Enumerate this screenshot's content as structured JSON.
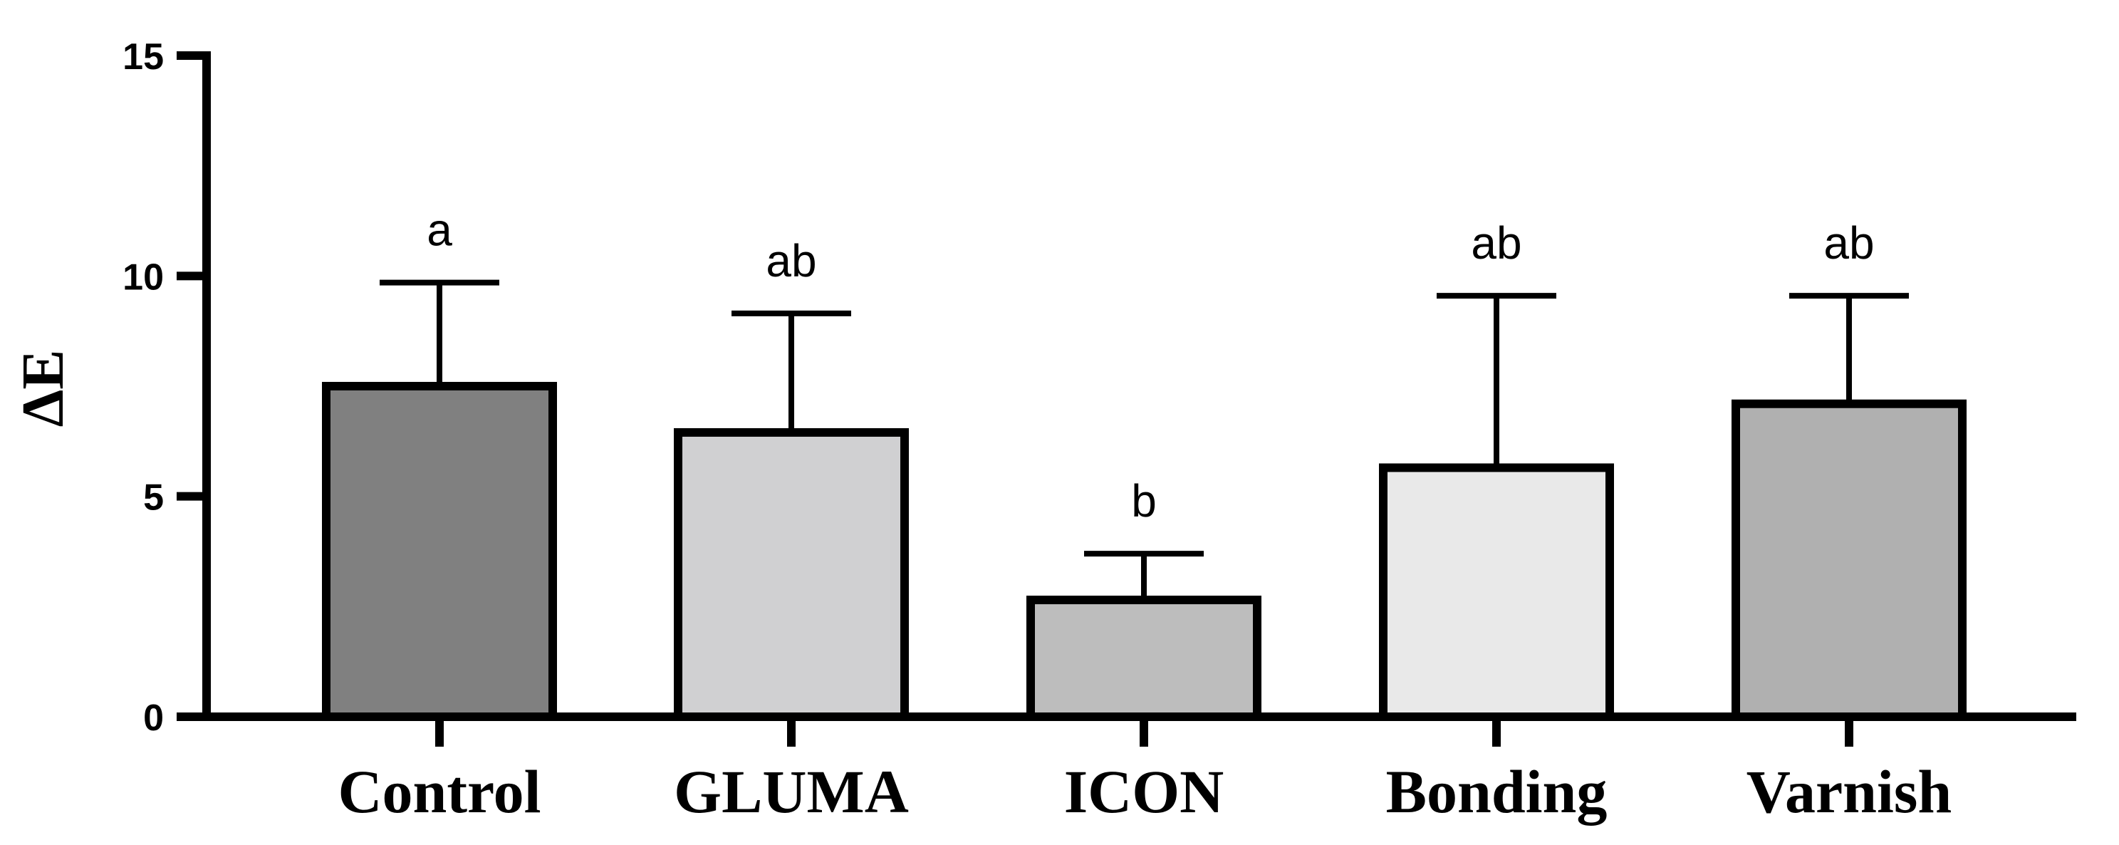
{
  "chart_data": {
    "type": "bar",
    "title": "",
    "xlabel": "",
    "ylabel": "ΔE",
    "ylim": [
      0,
      15
    ],
    "yticks": [
      0,
      5,
      10,
      15
    ],
    "categories": [
      "Control",
      "GLUMA",
      "ICON",
      "Bonding",
      "Varnish"
    ],
    "values": [
      7.5,
      6.45,
      2.65,
      5.65,
      7.1
    ],
    "error_upper": [
      2.35,
      2.7,
      1.05,
      3.9,
      2.45
    ],
    "significance": [
      "a",
      "ab",
      "b",
      "ab",
      "ab"
    ],
    "bar_colors": [
      "#808080",
      "#d0d0d2",
      "#bdbdbd",
      "#e9e9e9",
      "#b0b0b0"
    ],
    "grid": false,
    "legend": "none"
  }
}
